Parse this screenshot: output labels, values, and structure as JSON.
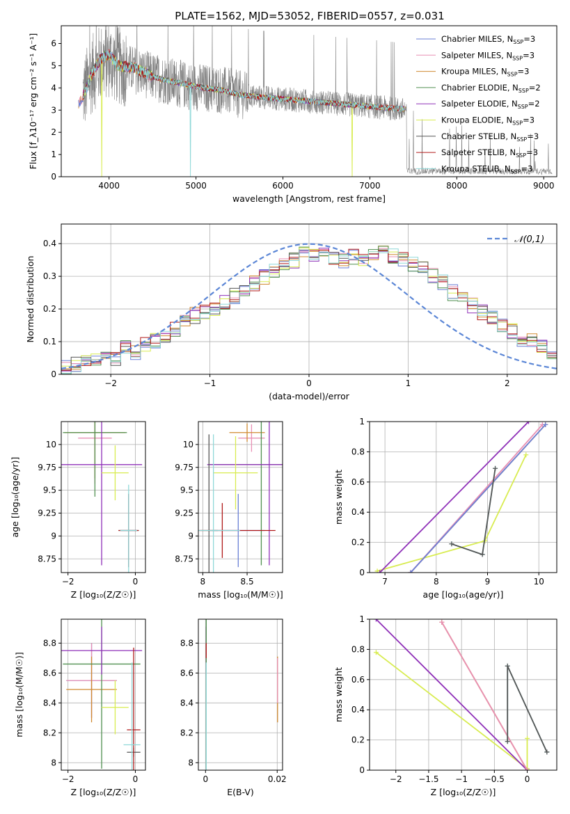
{
  "title": "PLATE=1562, MJD=53052, FIBERID=0557, z=0.031",
  "colors": {
    "Chabrier MILES": "#6a7fd6",
    "Salpeter MILES": "#e88fb4",
    "Kroupa MILES": "#d08a30",
    "Chabrier ELODIE": "#4f8f4f",
    "Salpeter ELODIE": "#8f30b8",
    "Kroupa ELODIE": "#d8ec50",
    "Chabrier STELIB": "#555555",
    "Salpeter STELIB": "#b01818",
    "Kroupa STELIB": "#8fd8d8",
    "gaussian": "#5b86d6",
    "observed": "#808080"
  },
  "chart_data": [
    {
      "id": "spectrum",
      "type": "line",
      "xlabel": "wavelength [Angstrom, rest frame]",
      "ylabel": "Flux [f_λ10⁻¹⁷ erg cm⁻² s⁻¹ A⁻¹]",
      "xlim": [
        3450,
        9150
      ],
      "ylim": [
        0,
        6.8
      ],
      "xticks": [
        4000,
        5000,
        6000,
        7000,
        8000,
        9000
      ],
      "yticks": [
        0,
        1,
        2,
        3,
        4,
        5,
        6
      ],
      "grid": false,
      "legend_position": "top-right",
      "legend": [
        "Chabrier MILES, N_SSP=3",
        "Salpeter MILES, N_SSP=3",
        "Kroupa MILES, N_SSP=3",
        "Chabrier ELODIE, N_SSP=2",
        "Salpeter ELODIE, N_SSP=2",
        "Kroupa ELODIE, N_SSP=3",
        "Chabrier STELIB, N_SSP=3",
        "Salpeter STELIB, N_SSP=3",
        "Kroupa STELIB, N_SSP=3"
      ],
      "observed_continuum": {
        "x": [
          3700,
          3800,
          3900,
          4000,
          4100,
          4300,
          4500,
          4700,
          4900,
          5100,
          5300,
          5500,
          5700,
          6000,
          6300,
          6600,
          6900,
          7200,
          7400
        ],
        "y": [
          3.7,
          4.6,
          5.1,
          5.3,
          5.0,
          4.8,
          4.5,
          4.3,
          4.1,
          4.0,
          3.9,
          3.7,
          3.6,
          3.5,
          3.4,
          3.3,
          3.2,
          3.1,
          3.0
        ]
      },
      "models_continuum": {
        "x": [
          3650,
          3700,
          3800,
          3900,
          4000,
          4100,
          4300,
          4500,
          4700,
          4900,
          5100,
          5300,
          5500,
          5700,
          6000,
          6300,
          6600,
          6900,
          7200,
          7400
        ],
        "y": [
          3.3,
          3.6,
          4.6,
          5.3,
          5.5,
          5.0,
          4.9,
          4.5,
          4.3,
          4.15,
          4.0,
          3.9,
          3.7,
          3.6,
          3.5,
          3.4,
          3.3,
          3.2,
          3.1,
          3.05
        ]
      }
    },
    {
      "id": "residuals",
      "type": "bar",
      "xlabel": "(data-model)/error",
      "ylabel": "Normed distribution",
      "xlim": [
        -2.5,
        2.5
      ],
      "ylim": [
        0,
        0.46
      ],
      "xticks": [
        -2,
        -1,
        0,
        1,
        2
      ],
      "yticks": [
        0.0,
        0.1,
        0.2,
        0.3,
        0.4
      ],
      "grid": true,
      "legend_position": "top-right",
      "legend": [
        "𝒩(0,1)"
      ],
      "bin_width": 0.1,
      "bins_start": -2.5,
      "histogram_values": [
        0.02,
        0.03,
        0.04,
        0.05,
        0.05,
        0.05,
        0.08,
        0.07,
        0.09,
        0.1,
        0.12,
        0.14,
        0.16,
        0.18,
        0.19,
        0.2,
        0.22,
        0.24,
        0.26,
        0.28,
        0.3,
        0.32,
        0.34,
        0.35,
        0.37,
        0.36,
        0.37,
        0.36,
        0.35,
        0.36,
        0.35,
        0.37,
        0.38,
        0.36,
        0.35,
        0.34,
        0.32,
        0.3,
        0.28,
        0.25,
        0.23,
        0.21,
        0.19,
        0.17,
        0.15,
        0.13,
        0.11,
        0.1,
        0.09,
        0.07,
        0.06,
        0.05,
        0.04,
        0.04,
        0.03,
        0.03,
        0.02,
        0.02,
        0.02,
        0.01
      ]
    },
    {
      "id": "age-vs-Z",
      "type": "scatter",
      "xlabel": "Z [log₁₀(Z/Z☉)]",
      "ylabel": "age  [log₁₀(age/yr)]",
      "xlim": [
        -2.2,
        0.3
      ],
      "ylim": [
        8.6,
        10.25
      ],
      "xticks": [
        -2,
        0
      ],
      "yticks": [
        8.75,
        9.0,
        9.25,
        9.5,
        9.75,
        10.0
      ],
      "grid": true,
      "points": [
        {
          "model": "Chabrier MILES",
          "x": -0.2,
          "y": 9.06,
          "xerr": 0.25,
          "yerr": 0.4
        },
        {
          "model": "Salpeter MILES",
          "x": -1.2,
          "y": 10.07,
          "xerr": 0.5,
          "yerr": 0.5
        },
        {
          "model": "Kroupa MILES",
          "x": -1.2,
          "y": 10.13,
          "xerr": 0.9,
          "yerr": 0.5
        },
        {
          "model": "Chabrier ELODIE",
          "x": -1.2,
          "y": 10.13,
          "xerr": 0.95,
          "yerr": 0.7
        },
        {
          "model": "Salpeter ELODIE",
          "x": -1.0,
          "y": 9.78,
          "xerr": 1.2,
          "yerr": 1.1
        },
        {
          "model": "Kroupa ELODIE",
          "x": -0.6,
          "y": 9.69,
          "xerr": 0.4,
          "yerr": 0.3
        },
        {
          "model": "Chabrier STELIB",
          "x": -0.2,
          "y": 9.06,
          "xerr": 0.3,
          "yerr": 0.4
        },
        {
          "model": "Salpeter STELIB",
          "x": -0.2,
          "y": 9.06,
          "xerr": 0.3,
          "yerr": 0.4
        },
        {
          "model": "Kroupa STELIB",
          "x": -0.2,
          "y": 9.06,
          "xerr": 0.25,
          "yerr": 0.5
        }
      ]
    },
    {
      "id": "age-vs-mass",
      "type": "scatter",
      "xlabel": "mass [log₁₀(M/M☉)]",
      "ylabel": "",
      "xlim": [
        7.95,
        8.9
      ],
      "ylim": [
        8.6,
        10.25
      ],
      "xticks": [
        8.0,
        8.5
      ],
      "yticks": [
        8.75,
        9.0,
        9.25,
        9.5,
        9.75,
        10.0
      ],
      "grid": true,
      "points": [
        {
          "model": "Chabrier MILES",
          "x": 8.4,
          "y": 9.06,
          "xerr": 0.3,
          "yerr": 0.4
        },
        {
          "model": "Salpeter MILES",
          "x": 8.55,
          "y": 10.07,
          "xerr": 0.15,
          "yerr": 0.15
        },
        {
          "model": "Kroupa MILES",
          "x": 8.5,
          "y": 10.13,
          "xerr": 0.2,
          "yerr": 0.1
        },
        {
          "model": "Chabrier ELODIE",
          "x": 8.66,
          "y": 9.78,
          "xerr": 0.6,
          "yerr": 1.1
        },
        {
          "model": "Salpeter ELODIE",
          "x": 8.75,
          "y": 9.78,
          "xerr": 0.7,
          "yerr": 1.1
        },
        {
          "model": "Kroupa ELODIE",
          "x": 8.37,
          "y": 9.69,
          "xerr": 0.25,
          "yerr": 0.4
        },
        {
          "model": "Chabrier STELIB",
          "x": 8.07,
          "y": 9.06,
          "xerr": 0.1,
          "yerr": 1.05
        },
        {
          "model": "Salpeter STELIB",
          "x": 8.22,
          "y": 9.06,
          "xerr": 0.6,
          "yerr": 0.3
        },
        {
          "model": "Kroupa STELIB",
          "x": 8.12,
          "y": 9.06,
          "xerr": 0.3,
          "yerr": 1.05
        }
      ]
    },
    {
      "id": "mass-weight-vs-age",
      "type": "line",
      "xlabel": "age  [log₁₀(age/yr)]",
      "ylabel": "mass weight",
      "xlim": [
        6.7,
        10.35
      ],
      "ylim": [
        0,
        1.0
      ],
      "xticks": [
        7,
        8,
        9,
        10
      ],
      "yticks": [
        0.0,
        0.2,
        0.4,
        0.6,
        0.8,
        1.0
      ],
      "grid": true,
      "series": [
        {
          "model": "Kroupa ELODIE",
          "x": [
            6.85,
            8.95,
            9.75
          ],
          "y": [
            0.01,
            0.21,
            0.78
          ]
        },
        {
          "model": "Salpeter ELODIE",
          "x": [
            6.9,
            9.8
          ],
          "y": [
            0.0,
            1.0
          ]
        },
        {
          "model": "Kroupa MILES",
          "x": [
            7.5,
            10.13
          ],
          "y": [
            0.0,
            0.98
          ]
        },
        {
          "model": "Salpeter MILES",
          "x": [
            7.5,
            10.07
          ],
          "y": [
            0.0,
            0.98
          ]
        },
        {
          "model": "Chabrier MILES",
          "x": [
            7.5,
            10.13
          ],
          "y": [
            0.0,
            0.98
          ]
        },
        {
          "model": "Kroupa STELIB",
          "x": [
            8.3,
            8.9,
            9.15
          ],
          "y": [
            0.19,
            0.12,
            0.69
          ]
        },
        {
          "model": "Chabrier STELIB",
          "x": [
            8.3,
            8.9,
            9.15
          ],
          "y": [
            0.19,
            0.12,
            0.69
          ]
        }
      ]
    },
    {
      "id": "mass-vs-Z",
      "type": "scatter",
      "xlabel": "Z [log₁₀(Z/Z☉)]",
      "ylabel": "mass [log₁₀(M/M☉)]",
      "xlim": [
        -2.2,
        0.3
      ],
      "ylim": [
        7.95,
        8.96
      ],
      "xticks": [
        -2,
        0
      ],
      "yticks": [
        8.0,
        8.2,
        8.4,
        8.6,
        8.8
      ],
      "grid": true,
      "points": [
        {
          "model": "Chabrier MILES",
          "x": -1.3,
          "y": 8.55,
          "xerr": 0.75,
          "yerr": 0.25
        },
        {
          "model": "Salpeter MILES",
          "x": -1.3,
          "y": 8.55,
          "xerr": 0.75,
          "yerr": 0.25
        },
        {
          "model": "Kroupa MILES",
          "x": -1.3,
          "y": 8.49,
          "xerr": 0.75,
          "yerr": 0.22
        },
        {
          "model": "Chabrier ELODIE",
          "x": -1.0,
          "y": 8.66,
          "xerr": 1.15,
          "yerr": 0.7
        },
        {
          "model": "Salpeter ELODIE",
          "x": -1.0,
          "y": 8.75,
          "xerr": 1.2,
          "yerr": 0.16
        },
        {
          "model": "Kroupa ELODIE",
          "x": -0.6,
          "y": 8.37,
          "xerr": 0.4,
          "yerr": 0.18
        },
        {
          "model": "Chabrier STELIB",
          "x": -0.05,
          "y": 8.07,
          "xerr": 0.2,
          "yerr": 0.03
        },
        {
          "model": "Salpeter STELIB",
          "x": -0.05,
          "y": 8.22,
          "xerr": 0.2,
          "yerr": 0.55
        },
        {
          "model": "Kroupa STELIB",
          "x": -0.1,
          "y": 8.12,
          "xerr": 0.25,
          "yerr": 0.55
        }
      ]
    },
    {
      "id": "mass-vs-ebv",
      "type": "scatter",
      "xlabel": "E(B-V)",
      "ylabel": "",
      "xlim": [
        -0.002,
        0.0215
      ],
      "ylim": [
        7.95,
        8.96
      ],
      "xticks": [
        0.0,
        0.02
      ],
      "yticks": [
        8.0,
        8.2,
        8.4,
        8.6,
        8.8
      ],
      "grid": true,
      "points": [
        {
          "model": "Salpeter ELODIE",
          "x": 0.0002,
          "y": 8.75,
          "xerr": 0,
          "yerr": 0.16
        },
        {
          "model": "Chabrier ELODIE",
          "x": 0.0002,
          "y": 8.66,
          "xerr": 0,
          "yerr": 0.7
        },
        {
          "model": "Salpeter STELIB",
          "x": 0.0002,
          "y": 8.75,
          "xerr": 0,
          "yerr": 0.05
        },
        {
          "model": "Kroupa STELIB",
          "x": 0.0002,
          "y": 8.12,
          "xerr": 0,
          "yerr": 0.55
        },
        {
          "model": "Kroupa MILES",
          "x": 0.0201,
          "y": 8.49,
          "xerr": 0,
          "yerr": 0.22
        },
        {
          "model": "Salpeter MILES",
          "x": 0.0201,
          "y": 8.55,
          "xerr": 0,
          "yerr": 0.15
        }
      ]
    },
    {
      "id": "mass-weight-vs-Z",
      "type": "line",
      "xlabel": "Z [log₁₀(Z/Z☉)]",
      "ylabel": "mass weight",
      "xlim": [
        -2.4,
        0.45
      ],
      "ylim": [
        0,
        1.0
      ],
      "xticks": [
        -2.0,
        -1.5,
        -1.0,
        -0.5,
        0.0
      ],
      "yticks": [
        0.0,
        0.2,
        0.4,
        0.6,
        0.8,
        1.0
      ],
      "grid": true,
      "series": [
        {
          "model": "Kroupa ELODIE",
          "x": [
            -2.3,
            0.0,
            0.0
          ],
          "y": [
            0.78,
            0.01,
            0.21
          ]
        },
        {
          "model": "Salpeter ELODIE",
          "x": [
            -2.3,
            0.0
          ],
          "y": [
            1.0,
            0.0
          ]
        },
        {
          "model": "Kroupa MILES",
          "x": [
            -1.3,
            0.0
          ],
          "y": [
            0.98,
            0.0
          ]
        },
        {
          "model": "Salpeter MILES",
          "x": [
            -1.3,
            0.0
          ],
          "y": [
            0.98,
            0.0
          ]
        },
        {
          "model": "Kroupa STELIB",
          "x": [
            -0.3,
            -0.3,
            0.3
          ],
          "y": [
            0.19,
            0.69,
            0.12
          ]
        },
        {
          "model": "Chabrier STELIB",
          "x": [
            -0.3,
            -0.3,
            0.3
          ],
          "y": [
            0.19,
            0.69,
            0.12
          ]
        }
      ]
    }
  ]
}
